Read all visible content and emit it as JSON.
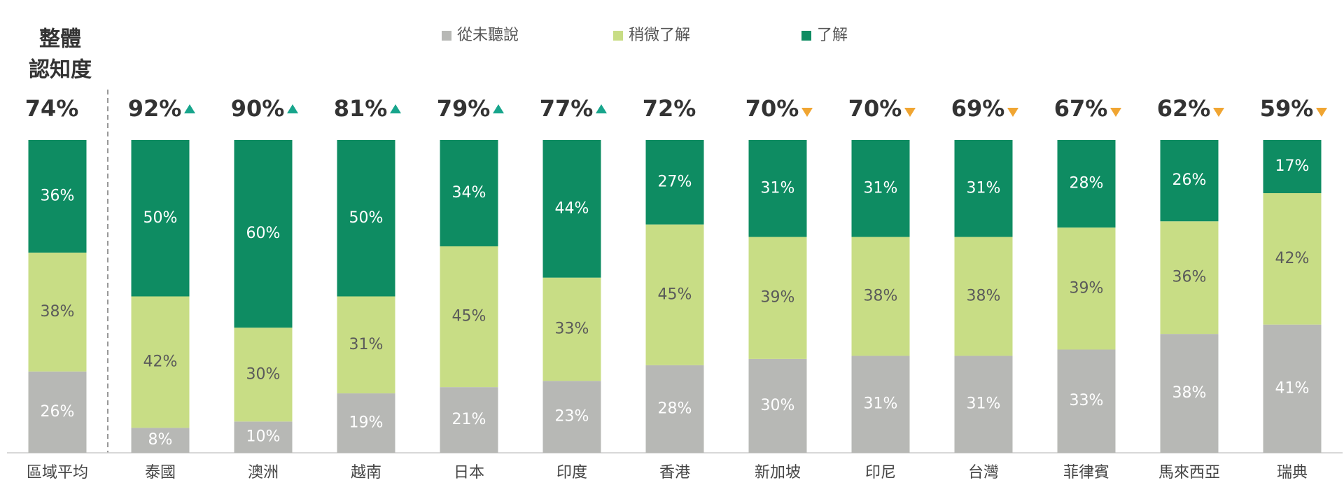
{
  "chart_data": {
    "type": "stacked_bar",
    "overall_label": [
      "整體",
      "認知度"
    ],
    "categories": [
      "區域平均",
      "泰國",
      "澳洲",
      "越南",
      "日本",
      "印度",
      "香港",
      "新加坡",
      "印尼",
      "台灣",
      "菲律賓",
      "馬來西亞",
      "瑞典"
    ],
    "series": [
      {
        "name": "從未聽說",
        "color": "#b7b8b5",
        "label_color": "#ffffff",
        "values": [
          26,
          8,
          10,
          19,
          21,
          23,
          28,
          30,
          31,
          31,
          33,
          38,
          41
        ],
        "value_labels": [
          "26%",
          "8%",
          "10%",
          "19%",
          "21%",
          "23%",
          "28%",
          "30%",
          "31%",
          "31%",
          "33%",
          "38%",
          "41%"
        ]
      },
      {
        "name": "稍微了解",
        "color": "#c8dd85",
        "label_color": "#5a5a5a",
        "values": [
          38,
          42,
          30,
          31,
          45,
          33,
          45,
          39,
          38,
          38,
          39,
          36,
          42
        ],
        "value_labels": [
          "38%",
          "42%",
          "30%",
          "31%",
          "45%",
          "33%",
          "45%",
          "39%",
          "38%",
          "38%",
          "39%",
          "36%",
          "42%"
        ]
      },
      {
        "name": "了解",
        "color": "#0e8c62",
        "label_color": "#ffffff",
        "values": [
          36,
          50,
          60,
          50,
          34,
          44,
          27,
          31,
          31,
          31,
          28,
          26,
          17
        ],
        "value_labels": [
          "36%",
          "50%",
          "60%",
          "50%",
          "34%",
          "44%",
          "27%",
          "31%",
          "31%",
          "31%",
          "28%",
          "26%",
          "17%"
        ]
      }
    ],
    "awareness": {
      "values": [
        74,
        92,
        90,
        81,
        79,
        77,
        72,
        70,
        70,
        69,
        67,
        62,
        59
      ],
      "value_labels": [
        "74%",
        "92%",
        "90%",
        "81%",
        "79%",
        "77%",
        "72%",
        "70%",
        "70%",
        "69%",
        "67%",
        "62%",
        "59%"
      ],
      "trend": [
        "none",
        "up",
        "up",
        "up",
        "up",
        "up",
        "none",
        "down",
        "down",
        "down",
        "down",
        "down",
        "down"
      ],
      "up_color": "#17a58c",
      "down_color": "#f0a532"
    }
  }
}
